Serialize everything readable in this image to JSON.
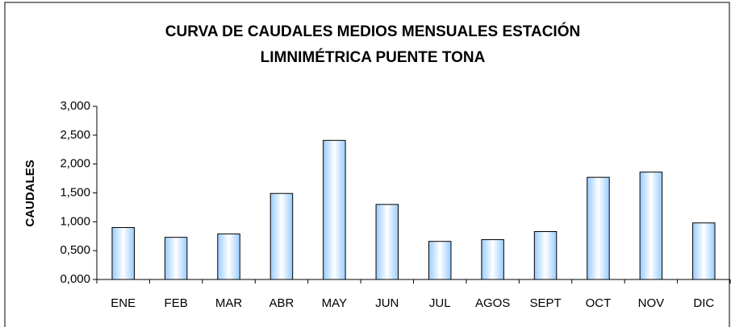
{
  "chart_data": {
    "type": "bar",
    "title": [
      "CURVA DE CAUDALES MEDIOS MENSUALES ESTACIÓN",
      "LIMNIMÉTRICA PUENTE TONA"
    ],
    "y_label": "CAUDALES",
    "categories": [
      "ENE",
      "FEB",
      "MAR",
      "ABR",
      "MAY",
      "JUN",
      "JUL",
      "AGOS",
      "SEPT",
      "OCT",
      "NOV",
      "DIC"
    ],
    "values": [
      0.9,
      0.73,
      0.79,
      1.49,
      2.41,
      1.3,
      0.66,
      0.69,
      0.83,
      1.77,
      1.86,
      0.98
    ],
    "color": "#99ccff",
    "ylim": [
      0,
      3
    ],
    "yticks": [
      {
        "value": 0,
        "label": "0,000"
      },
      {
        "value": 0.5,
        "label": "0,500"
      },
      {
        "value": 1,
        "label": "1,000"
      },
      {
        "value": 1.5,
        "label": "1,500"
      },
      {
        "value": 2,
        "label": "2,000"
      },
      {
        "value": 2.5,
        "label": "2,500"
      },
      {
        "value": 3,
        "label": "3,000"
      }
    ],
    "grid": false
  }
}
